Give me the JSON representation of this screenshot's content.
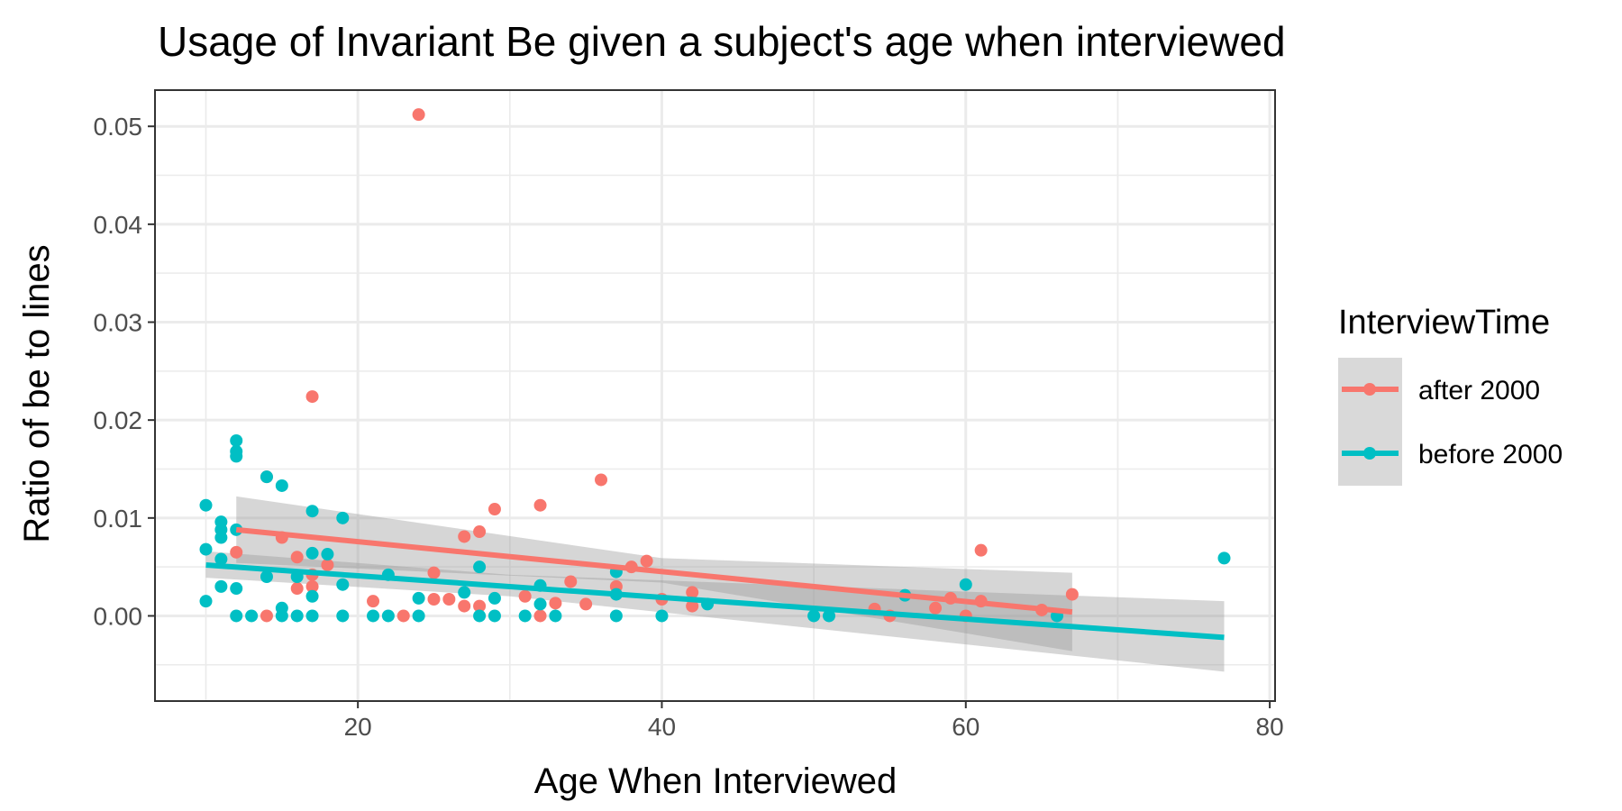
{
  "chart_data": {
    "type": "scatter",
    "title": "Usage of Invariant Be given a subject's age when interviewed",
    "xlabel": "Age When Interviewed",
    "ylabel": "Ratio of be to lines",
    "xlim": [
      6.65,
      80.35
    ],
    "ylim": [
      -0.0087,
      0.0537
    ],
    "x_ticks": [
      20,
      40,
      60,
      80
    ],
    "x_tick_labels": [
      "20",
      "40",
      "60",
      "80"
    ],
    "y_ticks": [
      0.0,
      0.01,
      0.02,
      0.03,
      0.04,
      0.05
    ],
    "y_tick_labels": [
      "0.00",
      "0.01",
      "0.02",
      "0.03",
      "0.04",
      "0.05"
    ],
    "grid": true,
    "legend": {
      "title": "InterviewTime",
      "position": "right",
      "entries": [
        "after 2000",
        "before 2000"
      ]
    },
    "colors": {
      "after 2000": "#F8766D",
      "before 2000": "#00BFC4",
      "ribbon": "#999999",
      "grid": "#ebebeb",
      "panel_border": "#333333"
    },
    "series": [
      {
        "name": "after 2000",
        "points": [
          [
            12,
            0.0065
          ],
          [
            14,
            0.0142
          ],
          [
            14,
            0.0
          ],
          [
            15,
            0.008
          ],
          [
            16,
            0.006
          ],
          [
            16,
            0.0028
          ],
          [
            17,
            0.0224
          ],
          [
            17,
            0.0042
          ],
          [
            17,
            0.003
          ],
          [
            18,
            0.0052
          ],
          [
            21,
            0.0015
          ],
          [
            23,
            0.0
          ],
          [
            24,
            0.0512
          ],
          [
            25,
            0.0044
          ],
          [
            25,
            0.0017
          ],
          [
            26,
            0.0017
          ],
          [
            27,
            0.0081
          ],
          [
            27,
            0.001
          ],
          [
            28,
            0.0086
          ],
          [
            28,
            0.001
          ],
          [
            29,
            0.0109
          ],
          [
            31,
            0.002
          ],
          [
            32,
            0.0113
          ],
          [
            32,
            0.0
          ],
          [
            33,
            0.0013
          ],
          [
            34,
            0.0035
          ],
          [
            35,
            0.0012
          ],
          [
            36,
            0.0139
          ],
          [
            37,
            0.003
          ],
          [
            38,
            0.005
          ],
          [
            39,
            0.0056
          ],
          [
            40,
            0.0017
          ],
          [
            42,
            0.0024
          ],
          [
            42,
            0.001
          ],
          [
            54,
            0.0007
          ],
          [
            55,
            0.0
          ],
          [
            58,
            0.0008
          ],
          [
            59,
            0.0018
          ],
          [
            60,
            0.0
          ],
          [
            61,
            0.0067
          ],
          [
            61,
            0.0015
          ],
          [
            65,
            0.0006
          ],
          [
            67,
            0.0022
          ]
        ],
        "trend": {
          "x": [
            12,
            67
          ],
          "y": [
            0.0088,
            0.0004
          ]
        },
        "ribbon": {
          "x": [
            12,
            40,
            67
          ],
          "lower": [
            0.0054,
            0.0034,
            -0.0036
          ],
          "upper": [
            0.0122,
            0.0059,
            0.0044
          ]
        }
      },
      {
        "name": "before 2000",
        "points": [
          [
            10,
            0.0113
          ],
          [
            10,
            0.0068
          ],
          [
            10,
            0.0015
          ],
          [
            11,
            0.0096
          ],
          [
            11,
            0.0088
          ],
          [
            11,
            0.008
          ],
          [
            11,
            0.0058
          ],
          [
            11,
            0.003
          ],
          [
            12,
            0.0179
          ],
          [
            12,
            0.0168
          ],
          [
            12,
            0.0163
          ],
          [
            12,
            0.0088
          ],
          [
            12,
            0.0028
          ],
          [
            12,
            0.0
          ],
          [
            13,
            0.0
          ],
          [
            14,
            0.0142
          ],
          [
            14,
            0.004
          ],
          [
            15,
            0.0133
          ],
          [
            15,
            0.0008
          ],
          [
            15,
            0.0
          ],
          [
            16,
            0.004
          ],
          [
            16,
            0.0
          ],
          [
            17,
            0.0107
          ],
          [
            17,
            0.0064
          ],
          [
            17,
            0.002
          ],
          [
            17,
            0.0
          ],
          [
            18,
            0.0063
          ],
          [
            19,
            0.01
          ],
          [
            19,
            0.0032
          ],
          [
            19,
            0.0
          ],
          [
            21,
            0.0
          ],
          [
            22,
            0.0042
          ],
          [
            22,
            0.0
          ],
          [
            24,
            0.0018
          ],
          [
            24,
            0.0
          ],
          [
            27,
            0.0024
          ],
          [
            28,
            0.005
          ],
          [
            28,
            0.0
          ],
          [
            29,
            0.0018
          ],
          [
            29,
            0.0
          ],
          [
            31,
            0.0
          ],
          [
            32,
            0.0031
          ],
          [
            32,
            0.0012
          ],
          [
            33,
            0.0
          ],
          [
            37,
            0.0045
          ],
          [
            37,
            0.0022
          ],
          [
            37,
            0.0
          ],
          [
            40,
            0.0
          ],
          [
            43,
            0.0012
          ],
          [
            50,
            0.0
          ],
          [
            51,
            0.0
          ],
          [
            56,
            0.0021
          ],
          [
            60,
            0.0032
          ],
          [
            66,
            0.0
          ],
          [
            77,
            0.0059
          ]
        ],
        "trend": {
          "x": [
            10,
            77
          ],
          "y": [
            0.0052,
            -0.0022
          ]
        },
        "ribbon": {
          "x": [
            10,
            30,
            77
          ],
          "lower": [
            0.0039,
            0.002,
            -0.0057
          ],
          "upper": [
            0.0066,
            0.0042,
            0.0015
          ]
        }
      }
    ]
  }
}
